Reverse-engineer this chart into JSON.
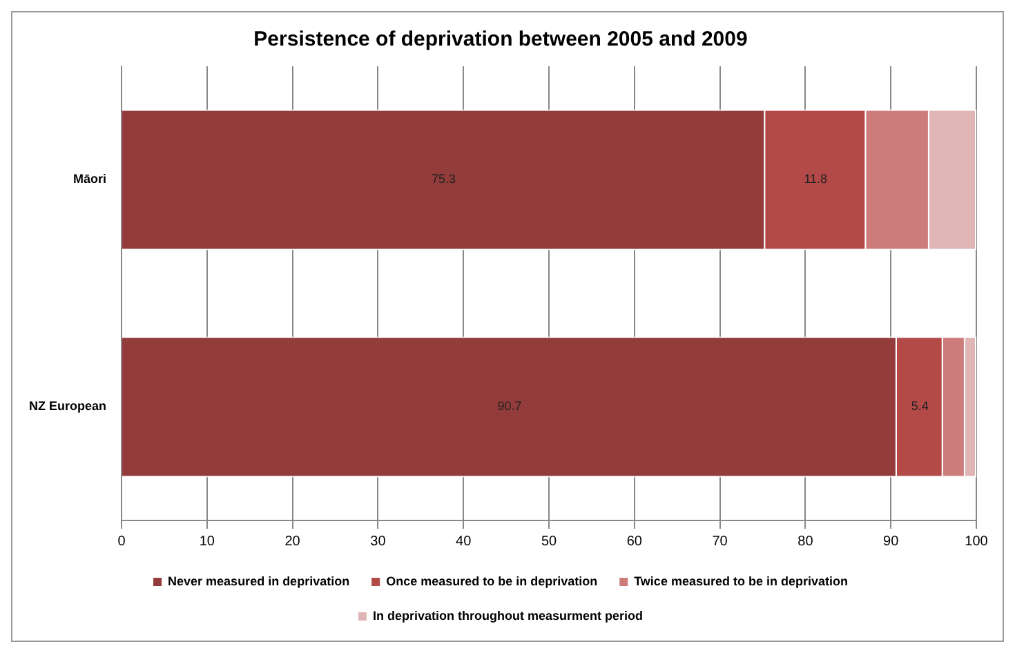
{
  "chart_data": {
    "type": "bar",
    "orientation": "horizontal",
    "stacked": true,
    "title": "Persistence of deprivation between 2005 and 2009",
    "categories": [
      "Māori",
      "NZ European"
    ],
    "series": [
      {
        "name": "Never measured in deprivation",
        "color": "#943b3b",
        "values": [
          75.3,
          90.7
        ],
        "value_labels": [
          "75.3",
          "90.7"
        ]
      },
      {
        "name": "Once measured to be in deprivation",
        "color": "#b34a48",
        "values": [
          11.8,
          5.4
        ],
        "value_labels": [
          "11.8",
          "5.4"
        ]
      },
      {
        "name": "Twice measured to be in deprivation",
        "color": "#cb7c7b",
        "values": [
          7.4,
          2.6
        ]
      },
      {
        "name": "In deprivation throughout measurment period",
        "color": "#dfb5b5",
        "values": [
          5.5,
          1.3
        ]
      }
    ],
    "xlim": [
      0,
      100
    ],
    "xticks": [
      0,
      10,
      20,
      30,
      40,
      50,
      60,
      70,
      80,
      90,
      100
    ],
    "grid": "x",
    "legend": "bottom"
  }
}
